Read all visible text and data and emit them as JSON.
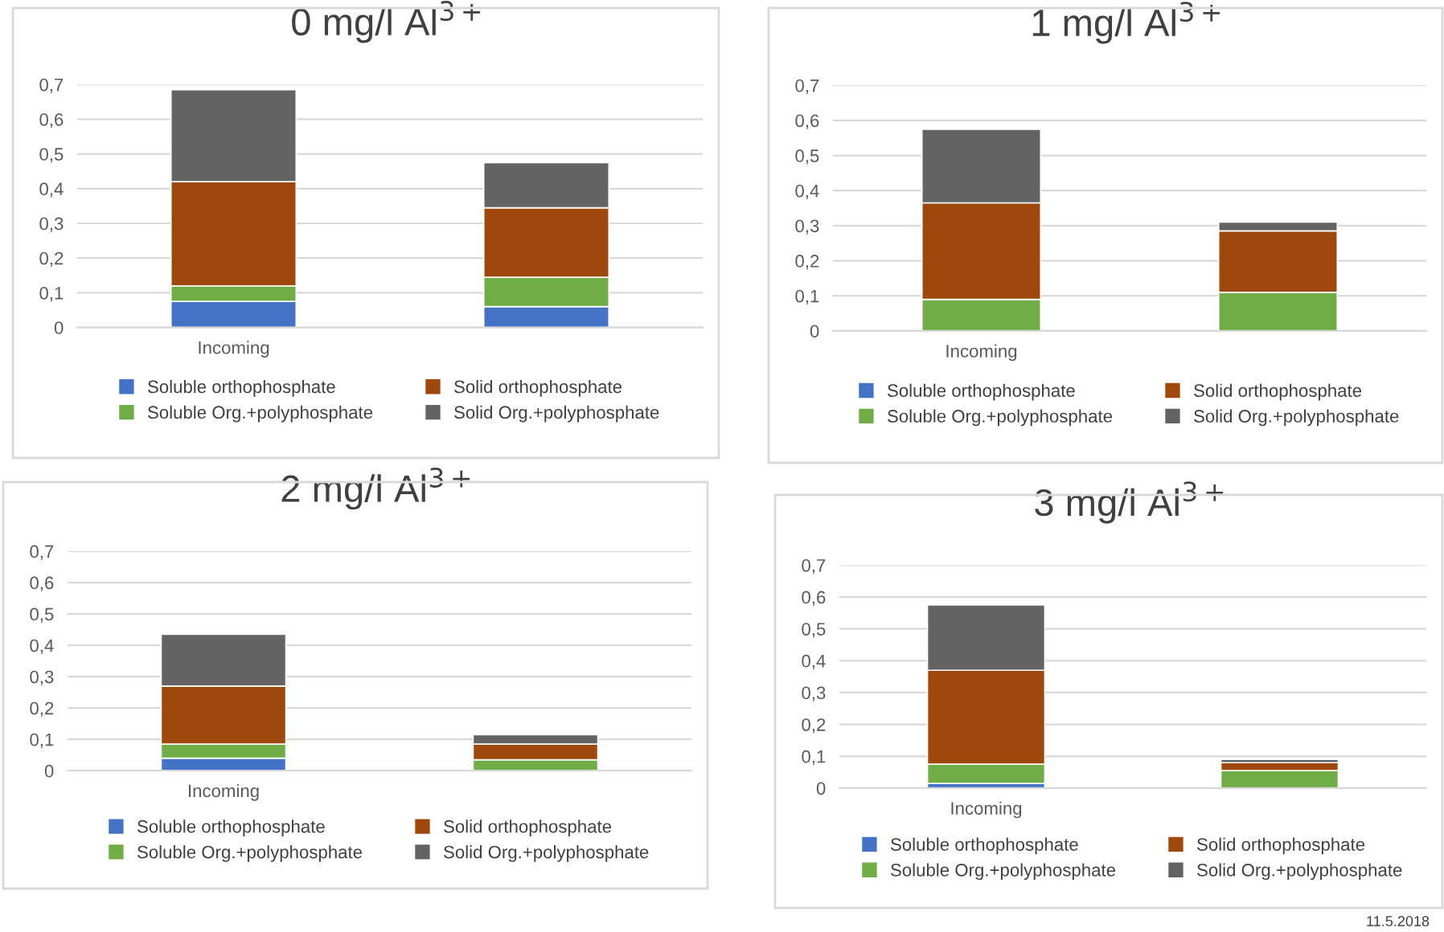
{
  "chart_data": [
    {
      "type": "bar",
      "stacked": true,
      "title": "0 mg/l Al$^{3+}$",
      "categories": [
        "Incoming",
        null
      ],
      "ylim": [
        0,
        0.7
      ],
      "yticks": [
        {
          "value": 0,
          "label": "0"
        },
        {
          "value": 0.1,
          "label": "0,1"
        },
        {
          "value": 0.2,
          "label": "0,2"
        },
        {
          "value": 0.3,
          "label": "0,3"
        },
        {
          "value": 0.4,
          "label": "0,4"
        },
        {
          "value": 0.5,
          "label": "0,5"
        },
        {
          "value": 0.6,
          "label": "0,6"
        },
        {
          "value": 0.7,
          "label": "0,7"
        }
      ],
      "grid": "y",
      "legend": "bottom",
      "series": [
        {
          "name": "Soluble orthophosphate",
          "color": "#4472c4",
          "values": [
            0.075,
            0.06
          ]
        },
        {
          "name": "Soluble Org.+polyphosphate",
          "color": "#70ad47",
          "values": [
            0.045,
            0.085
          ]
        },
        {
          "name": "Solid orthophosphate",
          "color": "#9e480e",
          "values": [
            0.3,
            0.2
          ]
        },
        {
          "name": "Solid Org.+polyphosphate",
          "color": "#636363",
          "values": [
            0.265,
            0.13
          ]
        }
      ]
    },
    {
      "type": "bar",
      "stacked": true,
      "title": "1 mg/l Al$^{3+}$",
      "categories": [
        "Incoming",
        null
      ],
      "ylim": [
        0,
        0.7
      ],
      "yticks": [
        {
          "value": 0,
          "label": "0"
        },
        {
          "value": 0.1,
          "label": "0,1"
        },
        {
          "value": 0.2,
          "label": "0,2"
        },
        {
          "value": 0.3,
          "label": "0,3"
        },
        {
          "value": 0.4,
          "label": "0,4"
        },
        {
          "value": 0.5,
          "label": "0,5"
        },
        {
          "value": 0.6,
          "label": "0,6"
        },
        {
          "value": 0.7,
          "label": "0,7"
        }
      ],
      "grid": "y",
      "legend": "bottom",
      "series": [
        {
          "name": "Soluble orthophosphate",
          "color": "#4472c4",
          "values": [
            0,
            0
          ]
        },
        {
          "name": "Soluble Org.+polyphosphate",
          "color": "#70ad47",
          "values": [
            0.09,
            0.11
          ]
        },
        {
          "name": "Solid orthophosphate",
          "color": "#9e480e",
          "values": [
            0.275,
            0.175
          ]
        },
        {
          "name": "Solid Org.+polyphosphate",
          "color": "#636363",
          "values": [
            0.21,
            0.025
          ]
        }
      ]
    },
    {
      "type": "bar",
      "stacked": true,
      "title": "2 mg/l Al$^{3+}$",
      "categories": [
        "Incoming",
        null
      ],
      "ylim": [
        0,
        0.7
      ],
      "yticks": [
        {
          "value": 0,
          "label": "0"
        },
        {
          "value": 0.1,
          "label": "0,1"
        },
        {
          "value": 0.2,
          "label": "0,2"
        },
        {
          "value": 0.3,
          "label": "0,3"
        },
        {
          "value": 0.4,
          "label": "0,4"
        },
        {
          "value": 0.5,
          "label": "0,5"
        },
        {
          "value": 0.6,
          "label": "0,6"
        },
        {
          "value": 0.7,
          "label": "0,7"
        }
      ],
      "grid": "y",
      "legend": "bottom",
      "series": [
        {
          "name": "Soluble orthophosphate",
          "color": "#4472c4",
          "values": [
            0.04,
            0
          ]
        },
        {
          "name": "Soluble Org.+polyphosphate",
          "color": "#70ad47",
          "values": [
            0.045,
            0.035
          ]
        },
        {
          "name": "Solid orthophosphate",
          "color": "#9e480e",
          "values": [
            0.185,
            0.05
          ]
        },
        {
          "name": "Solid Org.+polyphosphate",
          "color": "#636363",
          "values": [
            0.165,
            0.03
          ]
        }
      ]
    },
    {
      "type": "bar",
      "stacked": true,
      "title": "3 mg/l Al$^{3+}$",
      "categories": [
        "Incoming",
        null
      ],
      "ylim": [
        0,
        0.7
      ],
      "yticks": [
        {
          "value": 0,
          "label": "0"
        },
        {
          "value": 0.1,
          "label": "0,1"
        },
        {
          "value": 0.2,
          "label": "0,2"
        },
        {
          "value": 0.3,
          "label": "0,3"
        },
        {
          "value": 0.4,
          "label": "0,4"
        },
        {
          "value": 0.5,
          "label": "0,5"
        },
        {
          "value": 0.6,
          "label": "0,6"
        },
        {
          "value": 0.7,
          "label": "0,7"
        }
      ],
      "grid": "y",
      "legend": "bottom",
      "annotations": [
        "11.5.2018"
      ],
      "series": [
        {
          "name": "Soluble orthophosphate",
          "color": "#4472c4",
          "values": [
            0.015,
            0
          ]
        },
        {
          "name": "Soluble Org.+polyphosphate",
          "color": "#70ad47",
          "values": [
            0.06,
            0.055
          ]
        },
        {
          "name": "Solid orthophosphate",
          "color": "#9e480e",
          "values": [
            0.295,
            0.025
          ]
        },
        {
          "name": "Solid Org.+polyphosphate",
          "color": "#636363",
          "values": [
            0.205,
            0.01
          ]
        }
      ]
    }
  ]
}
